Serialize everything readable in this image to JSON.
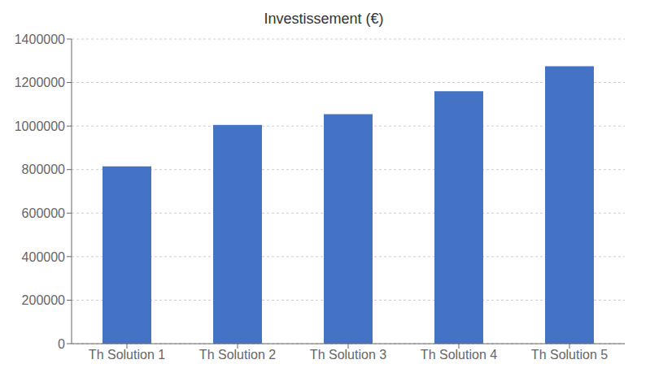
{
  "chart_data": {
    "type": "bar",
    "title": "Investissement (€)",
    "categories": [
      "Th Solution 1",
      "Th Solution 2",
      "Th Solution 3",
      "Th Solution 4",
      "Th Solution 5"
    ],
    "values": [
      815000,
      1005000,
      1055000,
      1160000,
      1275000
    ],
    "color": "#4472C4",
    "ylim": [
      0,
      1400000
    ],
    "yticks": [
      0,
      200000,
      400000,
      600000,
      800000,
      1000000,
      1200000,
      1400000
    ],
    "grid": true
  }
}
